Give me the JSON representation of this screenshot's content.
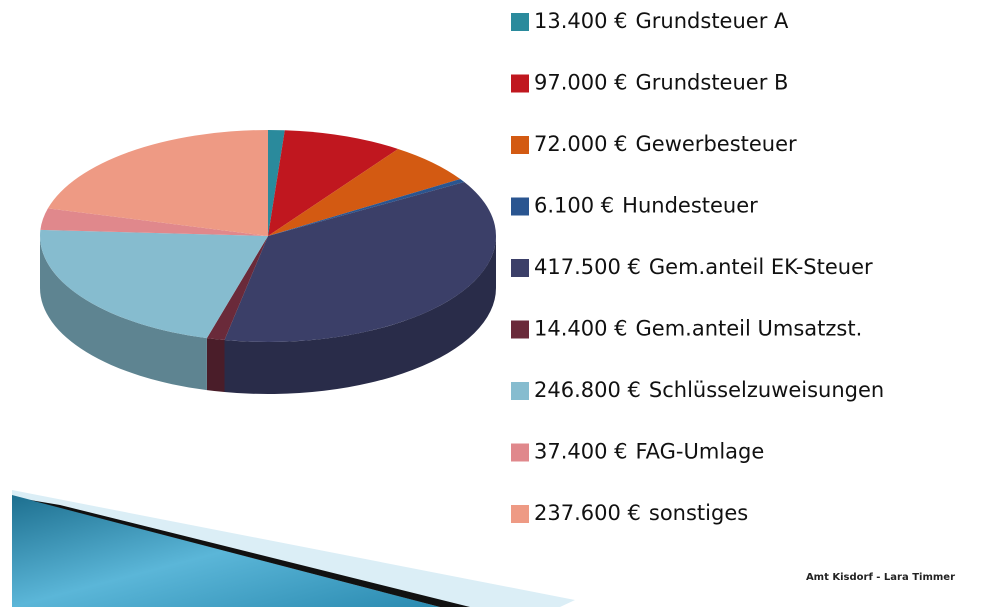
{
  "chart_data": {
    "type": "pie",
    "categories": [
      "Grundsteuer A",
      "Grundsteuer B",
      "Gewerbesteuer",
      "Hundesteuer",
      "Gem.anteil EK-Steuer",
      "Gem.anteil Umsatzst.",
      "Schlüsselzuweisungen",
      "FAG-Umlage",
      "sonstiges"
    ],
    "values": [
      13400,
      97000,
      72000,
      6100,
      417500,
      14400,
      246800,
      37400,
      237600
    ],
    "value_labels": [
      "13.400 €",
      "97.000 €",
      "72.000 €",
      "6.100 €",
      "417.500 €",
      "14.400 €",
      "246.800 €",
      "37.400 €",
      "237.600 €"
    ],
    "colors": [
      "#2a8a9c",
      "#c0171f",
      "#d35a12",
      "#2a5590",
      "#3b3f68",
      "#6a2a3a",
      "#86bccf",
      "#e0888c",
      "#ee9a84"
    ],
    "footer": "Amt Kisdorf - Lara Timmer"
  }
}
